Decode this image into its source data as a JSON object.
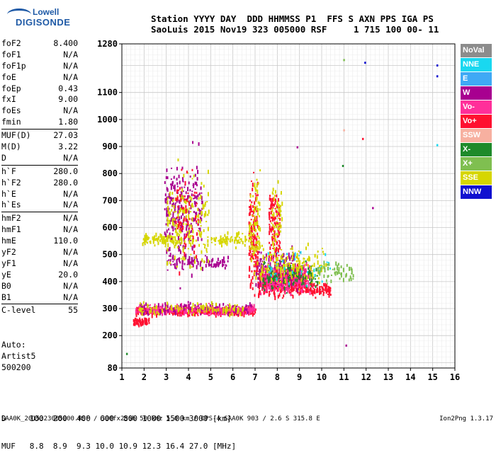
{
  "logo": {
    "line1": "Lowell",
    "line2": "DIGISONDE"
  },
  "header": {
    "line1": "Station YYYY DAY  DDD HHMMSS P1  FFS S AXN PPS IGA PS",
    "line2": "SaoLuis 2015 Nov19 323 005000 RSF     1 715 100 00- 11"
  },
  "params": {
    "group1": [
      {
        "name": "foF2",
        "value": "8.400"
      },
      {
        "name": "foF1",
        "value": "N/A"
      },
      {
        "name": "foF1p",
        "value": "N/A"
      },
      {
        "name": "foE",
        "value": "N/A"
      },
      {
        "name": "foEp",
        "value": "0.43"
      },
      {
        "name": "fxI",
        "value": "9.00"
      },
      {
        "name": "foEs",
        "value": "N/A"
      },
      {
        "name": "fmin",
        "value": "1.80"
      }
    ],
    "group2": [
      {
        "name": "MUF(D)",
        "value": "27.03"
      },
      {
        "name": "M(D)",
        "value": "3.22"
      },
      {
        "name": "D",
        "value": "N/A"
      }
    ],
    "group3": [
      {
        "name": "h`F",
        "value": "280.0"
      },
      {
        "name": "h`F2",
        "value": "280.0"
      },
      {
        "name": "h`E",
        "value": "N/A"
      },
      {
        "name": "h`Es",
        "value": "N/A"
      }
    ],
    "group4": [
      {
        "name": "hmF2",
        "value": "N/A"
      },
      {
        "name": "hmF1",
        "value": "N/A"
      },
      {
        "name": "hmE",
        "value": "110.0"
      },
      {
        "name": "yF2",
        "value": "N/A"
      },
      {
        "name": "yF1",
        "value": "N/A"
      },
      {
        "name": "yE",
        "value": "20.0"
      },
      {
        "name": "B0",
        "value": "N/A"
      },
      {
        "name": "B1",
        "value": "N/A"
      }
    ],
    "group5": [
      {
        "name": "C-level",
        "value": "55"
      }
    ]
  },
  "auto": {
    "line1": "Auto:",
    "line2": "Artist5",
    "line3": "500200"
  },
  "legend": [
    {
      "label": "NoVal",
      "color": "#8c8c8c"
    },
    {
      "label": "NNE",
      "color": "#19d8f0"
    },
    {
      "label": "E",
      "color": "#3fa9f5"
    },
    {
      "label": "W",
      "color": "#a80090"
    },
    {
      "label": "Vo-",
      "color": "#ff2f9a"
    },
    {
      "label": "Vo+",
      "color": "#ff1030"
    },
    {
      "label": "SSW",
      "color": "#f7b0a0"
    },
    {
      "label": "X-",
      "color": "#1e8a2a"
    },
    {
      "label": "X+",
      "color": "#7fbf50"
    },
    {
      "label": "SSE",
      "color": "#d6d600"
    },
    {
      "label": "NNW",
      "color": "#1010d0"
    }
  ],
  "bottom": {
    "line1": "D     100  200  400  600  800 1000 1500 3000 [km]",
    "line2": "MUF   8.8  8.9  9.3 10.0 10.9 12.3 16.4 27.0 [MHz]"
  },
  "footer": {
    "left": "SAA0K_2015323005000.RSF / 300fx256h 50 kHz 5.0 km / DPS-4 SAA0K 903 / 2.6 S 315.8 E",
    "right": "Ion2Png 1.3.17"
  },
  "chart_data": {
    "type": "scatter",
    "xlim": [
      1,
      16
    ],
    "ylim": [
      80,
      1280
    ],
    "xticks": [
      1,
      2,
      3,
      4,
      5,
      6,
      7,
      8,
      9,
      10,
      11,
      12,
      13,
      14,
      15,
      16
    ],
    "yticks": [
      80,
      200,
      300,
      400,
      500,
      600,
      700,
      800,
      900,
      1000,
      1100,
      1280
    ],
    "grid": true,
    "legend_position": "right",
    "echoes": [
      {
        "name": "F-trace low",
        "color": "Vo+",
        "x0": 1.6,
        "x1": 7.0,
        "y": 290,
        "spread": 12,
        "n": 420
      },
      {
        "name": "F-trace low",
        "color": "Vo-",
        "x0": 1.6,
        "x1": 7.0,
        "y": 295,
        "spread": 14,
        "n": 260
      },
      {
        "name": "F-trace low",
        "color": "W",
        "x0": 1.8,
        "x1": 6.8,
        "y": 300,
        "spread": 18,
        "n": 120
      },
      {
        "name": "F-trace low",
        "color": "SSE",
        "x0": 1.7,
        "x1": 6.5,
        "y": 300,
        "spread": 18,
        "n": 100
      },
      {
        "name": "upper band",
        "color": "SSE",
        "x0": 1.9,
        "x1": 3.7,
        "y": 555,
        "spread": 18,
        "n": 90
      },
      {
        "name": "upper band",
        "color": "W",
        "x0": 3.0,
        "x1": 5.8,
        "y": 470,
        "spread": 20,
        "n": 90
      },
      {
        "name": "upper band",
        "color": "SSE",
        "x0": 5.0,
        "x1": 6.8,
        "y": 560,
        "spread": 20,
        "n": 70
      },
      {
        "name": "spread column",
        "color": "W",
        "x0": 2.9,
        "x1": 4.6,
        "y": 650,
        "spread": 150,
        "n": 260
      },
      {
        "name": "spread column",
        "color": "SSE",
        "x0": 3.0,
        "x1": 4.9,
        "y": 620,
        "spread": 140,
        "n": 180
      },
      {
        "name": "spread column",
        "color": "Vo+",
        "x0": 3.4,
        "x1": 4.4,
        "y": 640,
        "spread": 160,
        "n": 60
      },
      {
        "name": "F2 dense",
        "color": "Vo+",
        "x0": 7.1,
        "x1": 9.3,
        "y": 400,
        "spread": 40,
        "n": 500
      },
      {
        "name": "F2 dense",
        "color": "W",
        "x0": 7.0,
        "x1": 9.0,
        "y": 440,
        "spread": 55,
        "n": 200
      },
      {
        "name": "F2 dense",
        "color": "Vo-",
        "x0": 7.2,
        "x1": 9.6,
        "y": 410,
        "spread": 45,
        "n": 220
      },
      {
        "name": "F2 dense",
        "color": "X-",
        "x0": 7.3,
        "x1": 9.8,
        "y": 420,
        "spread": 45,
        "n": 120
      },
      {
        "name": "F2 dense",
        "color": "SSE",
        "x0": 7.2,
        "x1": 10.2,
        "y": 460,
        "spread": 60,
        "n": 160
      },
      {
        "name": "F2 dense",
        "color": "NNE",
        "x0": 7.5,
        "x1": 10.5,
        "y": 450,
        "spread": 50,
        "n": 40
      },
      {
        "name": "F2 tail",
        "color": "Vo+",
        "x0": 9.3,
        "x1": 10.4,
        "y": 370,
        "spread": 18,
        "n": 80
      },
      {
        "name": "F2 tail",
        "color": "X+",
        "x0": 9.8,
        "x1": 11.4,
        "y": 430,
        "spread": 35,
        "n": 60
      },
      {
        "name": "column 7",
        "color": "Vo+",
        "x0": 6.7,
        "x1": 7.1,
        "y": 560,
        "spread": 160,
        "n": 140
      },
      {
        "name": "column 7",
        "color": "SSE",
        "x0": 6.7,
        "x1": 7.2,
        "y": 600,
        "spread": 160,
        "n": 90
      },
      {
        "name": "column 8",
        "color": "Vo+",
        "x0": 7.6,
        "x1": 8.1,
        "y": 600,
        "spread": 110,
        "n": 120
      },
      {
        "name": "column 8",
        "color": "SSE",
        "x0": 7.7,
        "x1": 8.2,
        "y": 640,
        "spread": 120,
        "n": 60
      },
      {
        "name": "ghost low",
        "color": "Vo+",
        "x0": 1.5,
        "x1": 2.2,
        "y": 250,
        "spread": 10,
        "n": 60
      }
    ],
    "isolated_points": [
      {
        "x": 1.22,
        "y": 132,
        "color": "X-"
      },
      {
        "x": 11.0,
        "y": 1220,
        "color": "X+"
      },
      {
        "x": 11.95,
        "y": 1210,
        "color": "NNW"
      },
      {
        "x": 15.2,
        "y": 1200,
        "color": "NNW"
      },
      {
        "x": 15.2,
        "y": 1160,
        "color": "NNW"
      },
      {
        "x": 15.2,
        "y": 905,
        "color": "NNE"
      },
      {
        "x": 11.85,
        "y": 928,
        "color": "Vo+"
      },
      {
        "x": 10.95,
        "y": 828,
        "color": "X-"
      },
      {
        "x": 11.1,
        "y": 163,
        "color": "W"
      },
      {
        "x": 12.3,
        "y": 672,
        "color": "W"
      },
      {
        "x": 8.9,
        "y": 897,
        "color": "W"
      },
      {
        "x": 11.0,
        "y": 960,
        "color": "SSW"
      }
    ]
  }
}
